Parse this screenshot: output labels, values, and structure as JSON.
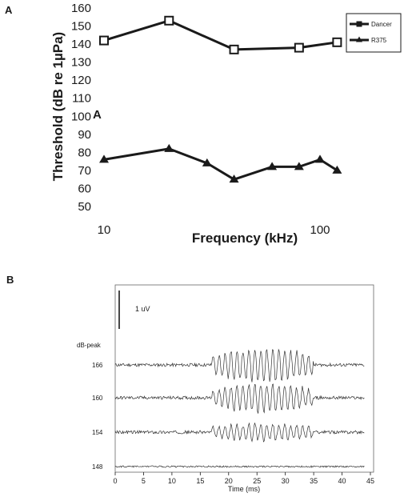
{
  "colors": {
    "ink": "#1a1a1a",
    "trace": "#333333",
    "box": "#666666"
  },
  "panels": {
    "a_letter": "A",
    "b_letter": "B",
    "stray_text": "A"
  },
  "chart_data": [
    {
      "panel": "A",
      "type": "line",
      "title": "",
      "xlabel": "Frequency (kHz)",
      "ylabel": "Threshold (dB re 1µPa)",
      "xscale": "log",
      "xlim": [
        10,
        150
      ],
      "ylim": [
        50,
        160
      ],
      "yticks": [
        "50",
        "60",
        "70",
        "80",
        "90",
        "100",
        "110",
        "120",
        "130",
        "140",
        "150",
        "160"
      ],
      "xticks": [
        {
          "value": 10,
          "label": "10"
        },
        {
          "value": 100,
          "label": "100"
        }
      ],
      "legend_position": "top-right",
      "series": [
        {
          "name": "Dancer",
          "marker": "open-square",
          "points": [
            [
              10,
              142
            ],
            [
              20,
              153
            ],
            [
              40,
              137
            ],
            [
              80,
              138
            ],
            [
              120,
              141
            ]
          ]
        },
        {
          "name": "R375",
          "marker": "triangle",
          "points": [
            [
              10,
              76
            ],
            [
              20,
              82
            ],
            [
              30,
              74
            ],
            [
              40,
              65
            ],
            [
              60,
              72
            ],
            [
              80,
              72
            ],
            [
              100,
              76
            ],
            [
              120,
              70
            ]
          ]
        }
      ]
    },
    {
      "panel": "B",
      "type": "line",
      "title": "",
      "xlabel": "Time (ms)",
      "ylabel": "dB-peak",
      "xlim": [
        0,
        45
      ],
      "xticks": [
        "0",
        "5",
        "10",
        "15",
        "20",
        "25",
        "30",
        "35",
        "40",
        "45"
      ],
      "scale_bar_label": "1 uV",
      "traces": [
        {
          "name": "166",
          "onset": 17,
          "offset": 35,
          "amplitude": 1.0
        },
        {
          "name": "160",
          "onset": 17,
          "offset": 35,
          "amplitude": 0.85
        },
        {
          "name": "154",
          "onset": 17,
          "offset": 35,
          "amplitude": 0.5
        },
        {
          "name": "148",
          "onset": 17,
          "offset": 35,
          "amplitude": 0.05
        }
      ]
    }
  ]
}
